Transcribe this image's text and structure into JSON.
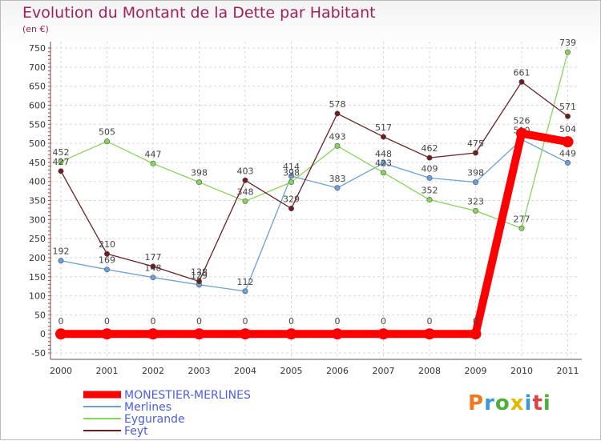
{
  "header": {
    "title": "Evolution du Montant de la Dette par Habitant",
    "subtitle": "(en €)"
  },
  "logo": {
    "text": "Proxiti",
    "colors": [
      "#f07820",
      "#3a9ad9",
      "#4fae3c",
      "#e2b800",
      "#3a9ad9",
      "#e04040",
      "#4fae3c"
    ]
  },
  "chart_data": {
    "type": "line",
    "categories": [
      "2000",
      "2001",
      "2002",
      "2003",
      "2004",
      "2005",
      "2006",
      "2007",
      "2008",
      "2009",
      "2010",
      "2011"
    ],
    "ylim": [
      -50,
      750
    ],
    "yticks": [
      "-50",
      "0",
      "50",
      "100",
      "150",
      "200",
      "250",
      "300",
      "350",
      "400",
      "450",
      "500",
      "550",
      "600",
      "650",
      "700",
      "750"
    ],
    "grid": true,
    "legend_position": "bottom-left",
    "series": [
      {
        "name": "MONESTIER-MERLINES",
        "color": "#ff0000",
        "values": [
          0,
          0,
          0,
          0,
          0,
          0,
          0,
          0,
          0,
          0,
          526,
          504
        ]
      },
      {
        "name": "Merlines",
        "color": "#6a9fd8",
        "values": [
          192,
          169,
          148,
          129,
          112,
          414,
          383,
          448,
          409,
          398,
          510,
          449
        ]
      },
      {
        "name": "Eygurande",
        "color": "#88d45a",
        "values": [
          452,
          505,
          447,
          398,
          348,
          398,
          493,
          423,
          352,
          323,
          277,
          739
        ]
      },
      {
        "name": "Feyt",
        "color": "#6b1f24",
        "values": [
          427,
          210,
          177,
          138,
          403,
          329,
          578,
          517,
          462,
          475,
          661,
          571
        ]
      }
    ]
  }
}
